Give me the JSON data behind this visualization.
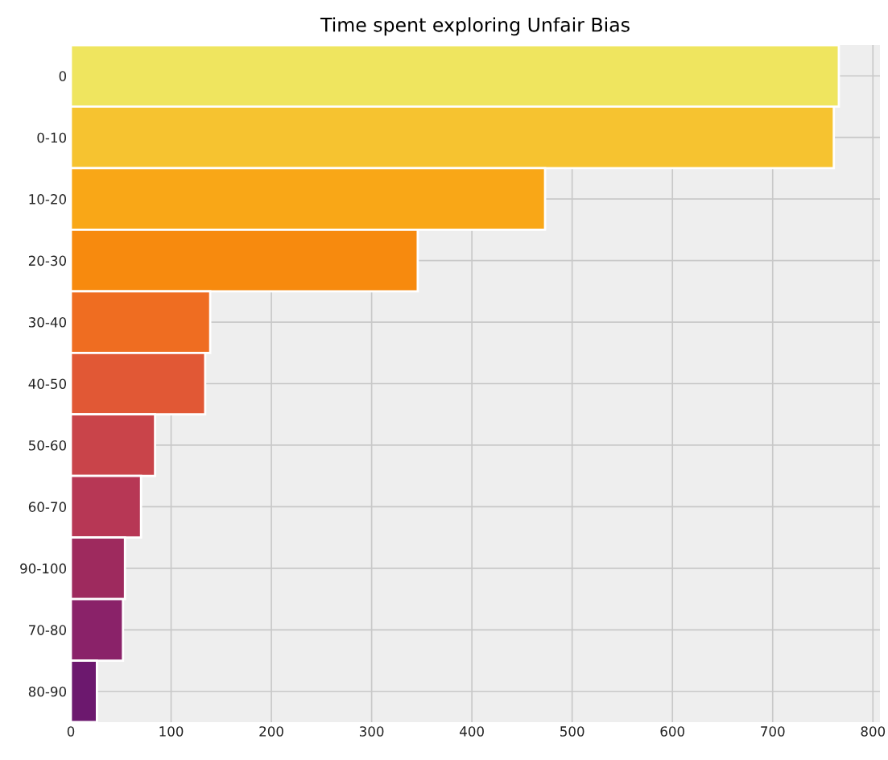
{
  "chart_data": {
    "type": "bar",
    "orientation": "horizontal",
    "title": "Time spent exploring Unfair Bias",
    "categories": [
      "0",
      "0-10",
      "10-20",
      "20-30",
      "30-40",
      "40-50",
      "50-60",
      "60-70",
      "90-100",
      "70-80",
      "80-90"
    ],
    "values": [
      766,
      761,
      473,
      346,
      139,
      134,
      84,
      70,
      54,
      52,
      26
    ],
    "colors": [
      "#efe55f",
      "#f6c330",
      "#f9a717",
      "#f78a0e",
      "#ef6d21",
      "#e15835",
      "#c9444a",
      "#b73755",
      "#9e2a5e",
      "#8a2269",
      "#6c186e"
    ],
    "xlim": [
      0,
      807
    ],
    "xticks": [
      0,
      100,
      200,
      300,
      400,
      500,
      600,
      700,
      800
    ],
    "grid": true
  }
}
